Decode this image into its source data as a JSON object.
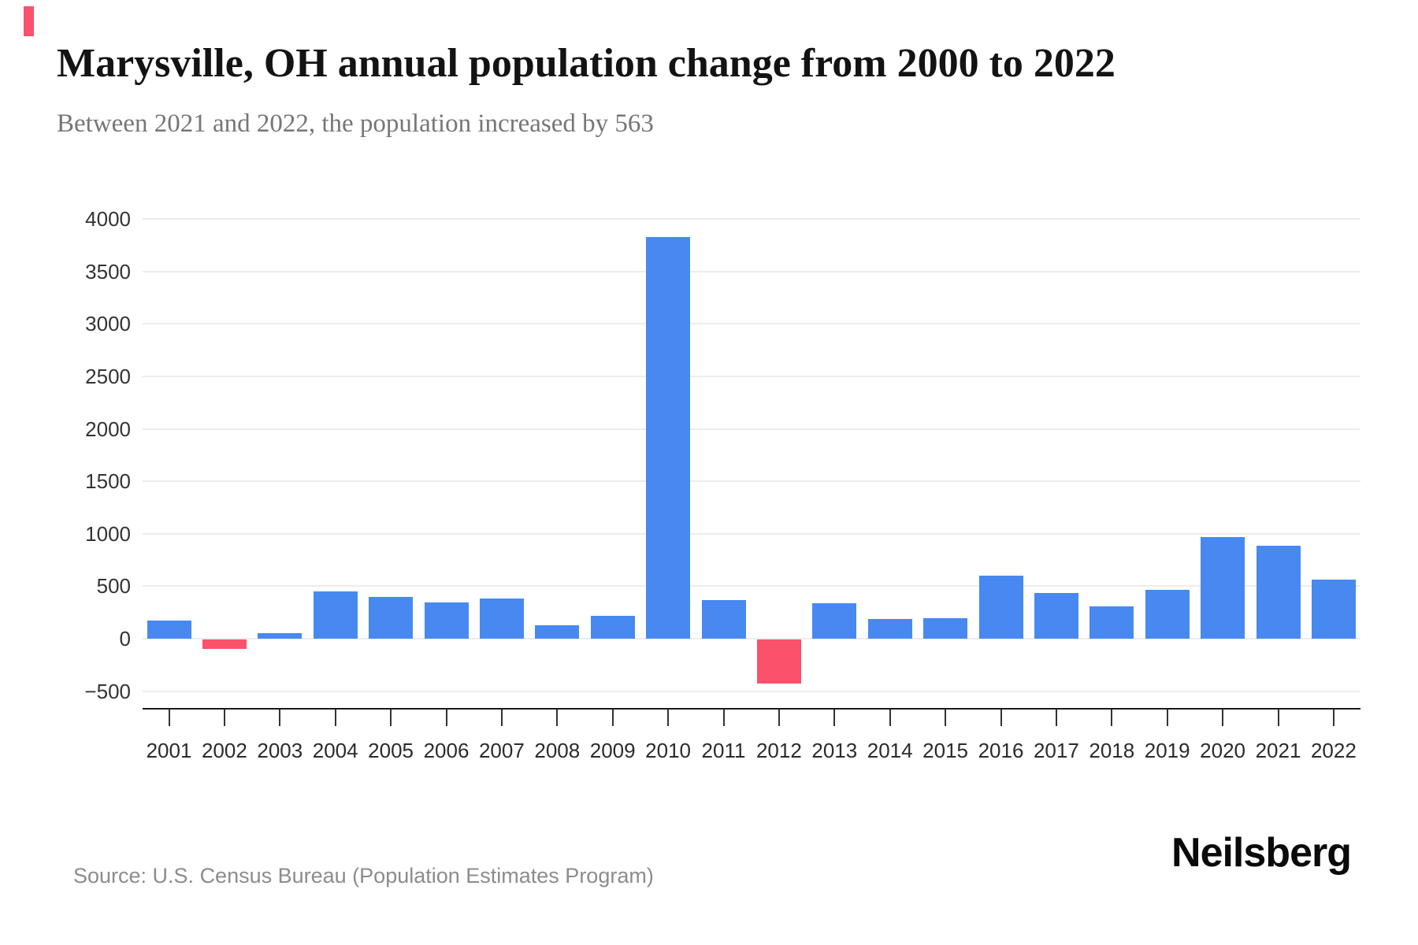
{
  "page": {
    "title": "Marysville, OH annual population change from 2000 to 2022",
    "subtitle": "Between 2021 and 2022, the population increased by 563",
    "source": "Source: U.S. Census Bureau (Population Estimates Program)",
    "brand": "Neilsberg"
  },
  "colors": {
    "bar_positive": "#4789F1",
    "bar_negative": "#FB516B",
    "accent_mark": "#FB516B",
    "grid_line": "#ededed",
    "axis_line": "#1b1b1b",
    "tick_mark": "#333333",
    "y_label": "#333333",
    "x_label": "#2b2b2b",
    "title_text": "#131313",
    "subtitle_text": "#767676",
    "source_text": "#8c8c8c"
  },
  "chart_data": {
    "type": "bar",
    "title": "Marysville, OH annual population change from 2000 to 2022",
    "subtitle": "Between 2021 and 2022, the population increased by 563",
    "xlabel": "",
    "ylabel": "",
    "categories": [
      "2001",
      "2002",
      "2003",
      "2004",
      "2005",
      "2006",
      "2007",
      "2008",
      "2009",
      "2010",
      "2011",
      "2012",
      "2013",
      "2014",
      "2015",
      "2016",
      "2017",
      "2018",
      "2019",
      "2020",
      "2021",
      "2022"
    ],
    "values": [
      170,
      -90,
      50,
      450,
      400,
      345,
      385,
      130,
      215,
      3830,
      370,
      -420,
      335,
      190,
      195,
      600,
      435,
      305,
      465,
      970,
      885,
      563
    ],
    "ylim": [
      -500,
      4000
    ],
    "ytick_step": 500,
    "yticks": [
      4000,
      3500,
      3000,
      2500,
      2000,
      1500,
      1000,
      500,
      0,
      -500
    ],
    "grid": true,
    "legend": false,
    "negative_years": [
      "2002",
      "2012"
    ]
  }
}
